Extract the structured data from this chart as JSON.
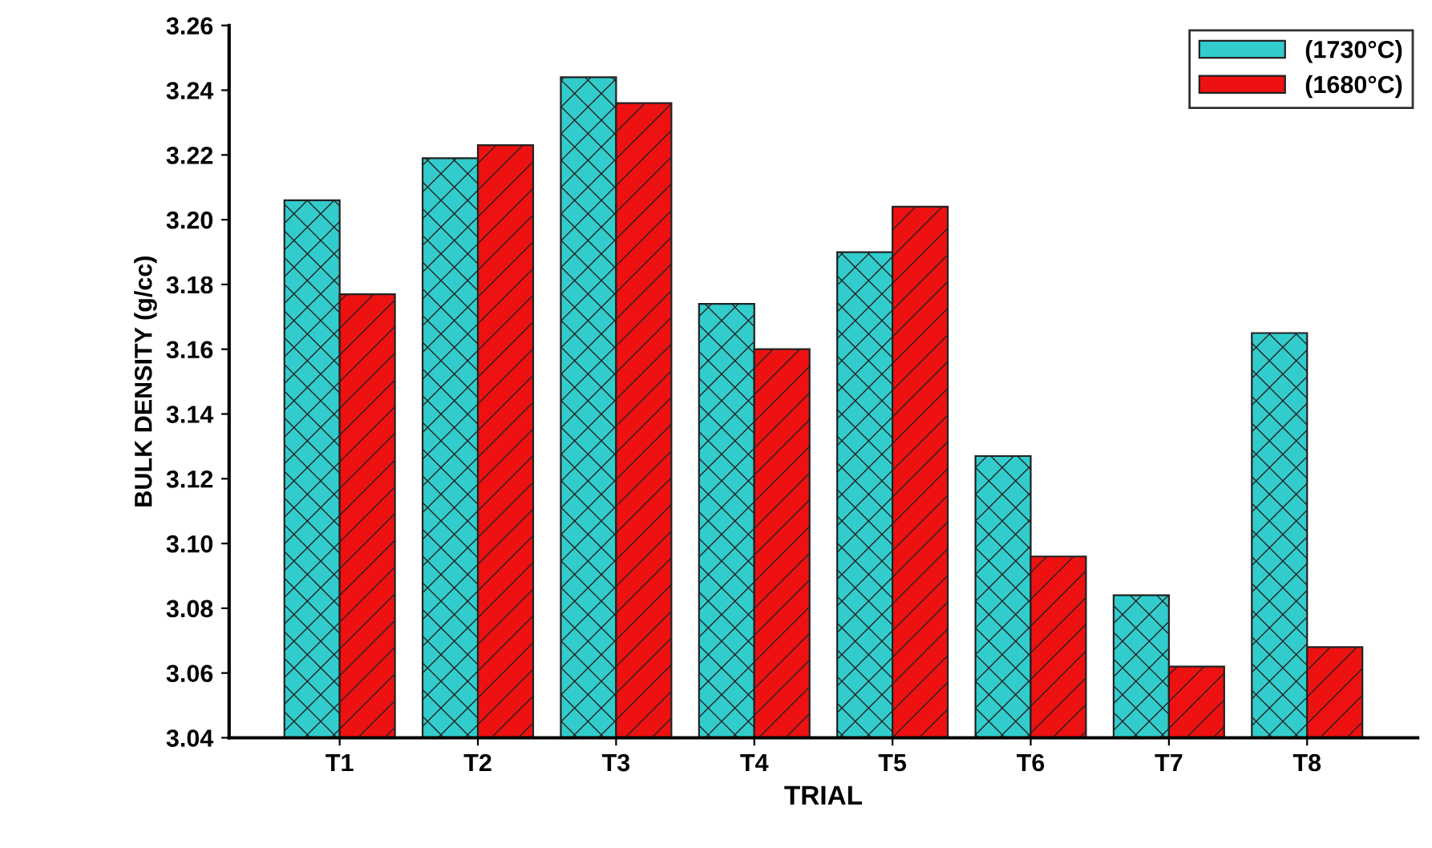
{
  "chart_data": {
    "type": "bar",
    "xlabel": "TRIAL",
    "ylabel": "BULK DENSITY (g/cc)",
    "categories": [
      "T1",
      "T2",
      "T3",
      "T4",
      "T5",
      "T6",
      "T7",
      "T8"
    ],
    "series": [
      {
        "name": "(1730°C)",
        "color": "#33cccc",
        "values": [
          3.206,
          3.219,
          3.244,
          3.174,
          3.19,
          3.127,
          3.084,
          3.165
        ]
      },
      {
        "name": "(1680°C)",
        "color": "#ee1111",
        "values": [
          3.177,
          3.223,
          3.236,
          3.16,
          3.204,
          3.096,
          3.062,
          3.068
        ]
      }
    ],
    "ylim": [
      3.04,
      3.26
    ],
    "yticks": [
      3.04,
      3.06,
      3.08,
      {
        "value": 3.1,
        "label": "3.10"
      },
      3.12,
      3.14,
      3.16,
      3.18,
      {
        "value": 3.2,
        "label": "3.20"
      },
      3.22,
      3.24,
      3.26
    ],
    "grid": false,
    "legend": "top right"
  }
}
